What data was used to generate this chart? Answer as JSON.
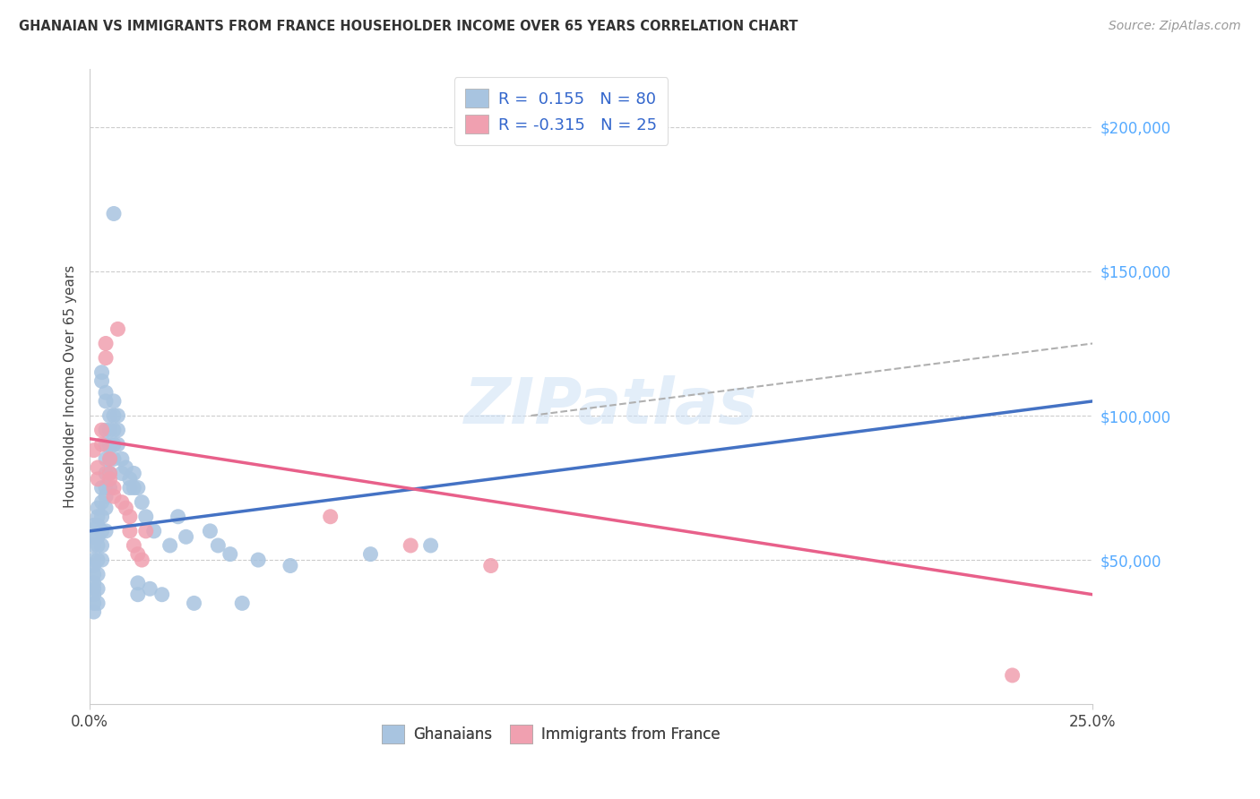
{
  "title": "GHANAIAN VS IMMIGRANTS FROM FRANCE HOUSEHOLDER INCOME OVER 65 YEARS CORRELATION CHART",
  "source": "Source: ZipAtlas.com",
  "ylabel": "Householder Income Over 65 years",
  "ylabel_right_values": [
    50000,
    100000,
    150000,
    200000
  ],
  "legend_bottom": [
    "Ghanaians",
    "Immigrants from France"
  ],
  "ghanaian_R": 0.155,
  "ghanaian_N": 80,
  "france_R": -0.315,
  "france_N": 25,
  "blue_scatter_color": "#a8c4e0",
  "pink_scatter_color": "#f0a0b0",
  "blue_line_color": "#4472c4",
  "pink_line_color": "#e8608a",
  "dashed_line_color": "#b0b0b0",
  "blue_line_x0": 0.0,
  "blue_line_y0": 60000,
  "blue_line_x1": 0.25,
  "blue_line_y1": 105000,
  "pink_line_x0": 0.0,
  "pink_line_y0": 92000,
  "pink_line_x1": 0.25,
  "pink_line_y1": 38000,
  "dash_line_x0": 0.11,
  "dash_line_y0": 100000,
  "dash_line_x1": 0.25,
  "dash_line_y1": 125000,
  "ghanaian_scatter": [
    [
      0.001,
      62000
    ],
    [
      0.001,
      58000
    ],
    [
      0.001,
      55000
    ],
    [
      0.001,
      50000
    ],
    [
      0.001,
      48000
    ],
    [
      0.001,
      45000
    ],
    [
      0.001,
      42000
    ],
    [
      0.001,
      40000
    ],
    [
      0.001,
      38000
    ],
    [
      0.001,
      35000
    ],
    [
      0.001,
      32000
    ],
    [
      0.002,
      68000
    ],
    [
      0.002,
      65000
    ],
    [
      0.002,
      62000
    ],
    [
      0.002,
      58000
    ],
    [
      0.002,
      55000
    ],
    [
      0.002,
      50000
    ],
    [
      0.002,
      45000
    ],
    [
      0.002,
      40000
    ],
    [
      0.002,
      35000
    ],
    [
      0.003,
      115000
    ],
    [
      0.003,
      112000
    ],
    [
      0.003,
      75000
    ],
    [
      0.003,
      70000
    ],
    [
      0.003,
      65000
    ],
    [
      0.003,
      60000
    ],
    [
      0.003,
      55000
    ],
    [
      0.003,
      50000
    ],
    [
      0.004,
      108000
    ],
    [
      0.004,
      105000
    ],
    [
      0.004,
      95000
    ],
    [
      0.004,
      90000
    ],
    [
      0.004,
      85000
    ],
    [
      0.004,
      80000
    ],
    [
      0.004,
      75000
    ],
    [
      0.004,
      72000
    ],
    [
      0.004,
      68000
    ],
    [
      0.004,
      60000
    ],
    [
      0.005,
      100000
    ],
    [
      0.005,
      95000
    ],
    [
      0.005,
      90000
    ],
    [
      0.005,
      85000
    ],
    [
      0.005,
      80000
    ],
    [
      0.005,
      75000
    ],
    [
      0.006,
      170000
    ],
    [
      0.006,
      105000
    ],
    [
      0.006,
      100000
    ],
    [
      0.006,
      95000
    ],
    [
      0.006,
      90000
    ],
    [
      0.006,
      85000
    ],
    [
      0.007,
      100000
    ],
    [
      0.007,
      95000
    ],
    [
      0.007,
      90000
    ],
    [
      0.008,
      85000
    ],
    [
      0.008,
      80000
    ],
    [
      0.009,
      82000
    ],
    [
      0.01,
      78000
    ],
    [
      0.01,
      75000
    ],
    [
      0.011,
      80000
    ],
    [
      0.011,
      75000
    ],
    [
      0.012,
      75000
    ],
    [
      0.012,
      42000
    ],
    [
      0.012,
      38000
    ],
    [
      0.013,
      70000
    ],
    [
      0.014,
      65000
    ],
    [
      0.015,
      40000
    ],
    [
      0.016,
      60000
    ],
    [
      0.018,
      38000
    ],
    [
      0.02,
      55000
    ],
    [
      0.022,
      65000
    ],
    [
      0.024,
      58000
    ],
    [
      0.026,
      35000
    ],
    [
      0.03,
      60000
    ],
    [
      0.032,
      55000
    ],
    [
      0.035,
      52000
    ],
    [
      0.038,
      35000
    ],
    [
      0.042,
      50000
    ],
    [
      0.05,
      48000
    ],
    [
      0.07,
      52000
    ],
    [
      0.085,
      55000
    ]
  ],
  "france_scatter": [
    [
      0.001,
      88000
    ],
    [
      0.002,
      82000
    ],
    [
      0.002,
      78000
    ],
    [
      0.003,
      95000
    ],
    [
      0.003,
      90000
    ],
    [
      0.004,
      125000
    ],
    [
      0.004,
      120000
    ],
    [
      0.005,
      85000
    ],
    [
      0.005,
      80000
    ],
    [
      0.005,
      78000
    ],
    [
      0.006,
      75000
    ],
    [
      0.006,
      72000
    ],
    [
      0.007,
      130000
    ],
    [
      0.008,
      70000
    ],
    [
      0.009,
      68000
    ],
    [
      0.01,
      65000
    ],
    [
      0.01,
      60000
    ],
    [
      0.011,
      55000
    ],
    [
      0.012,
      52000
    ],
    [
      0.013,
      50000
    ],
    [
      0.014,
      60000
    ],
    [
      0.06,
      65000
    ],
    [
      0.08,
      55000
    ],
    [
      0.1,
      48000
    ],
    [
      0.23,
      10000
    ]
  ],
  "xlim": [
    0.0,
    0.25
  ],
  "ylim": [
    0,
    220000
  ],
  "figwidth": 14.06,
  "figheight": 8.92,
  "dpi": 100
}
